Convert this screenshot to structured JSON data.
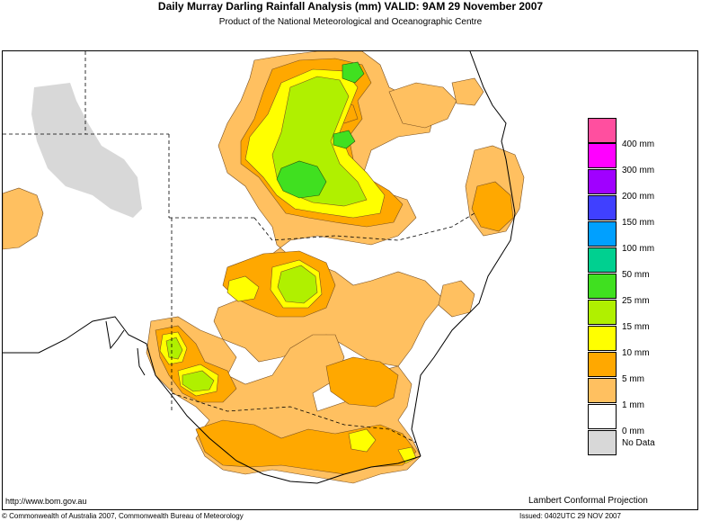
{
  "header": {
    "title": "Daily Murray Darling Rainfall Analysis (mm)  VALID: 9AM 29 November 2007",
    "subtitle": "Product of the National Meteorological and Oceanographic Centre"
  },
  "legend": {
    "items": [
      {
        "label": "400 mm",
        "color": "#ff4f9f"
      },
      {
        "label": "300 mm",
        "color": "#ff00ff"
      },
      {
        "label": "200 mm",
        "color": "#a000ff"
      },
      {
        "label": "150 mm",
        "color": "#4040ff"
      },
      {
        "label": "100 mm",
        "color": "#00a0ff"
      },
      {
        "label": "50 mm",
        "color": "#00d090"
      },
      {
        "label": "25 mm",
        "color": "#40e020"
      },
      {
        "label": "15 mm",
        "color": "#b0f000"
      },
      {
        "label": "10 mm",
        "color": "#ffff00"
      },
      {
        "label": "5 mm",
        "color": "#ffa800"
      },
      {
        "label": "1 mm",
        "color": "#ffc060"
      },
      {
        "label": "0 mm",
        "color": "#ffffff"
      },
      {
        "label": "No Data",
        "color": "#d8d8d8"
      }
    ]
  },
  "footer": {
    "url": "http://www.bom.gov.au",
    "projection": "Lambert Conformal Projection",
    "copyright": "© Commonwealth of Australia 2007, Commonwealth Bureau of Meteorology",
    "issued": "Issued: 0402UTC 29 NOV 2007"
  }
}
